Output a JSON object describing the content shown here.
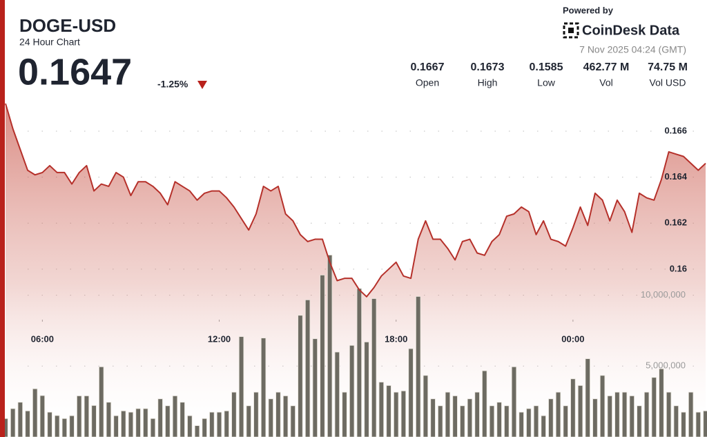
{
  "header": {
    "price": 0.1647,
    "change": "-1.25%",
    "stats": [
      {
        "value": "0.1667",
        "label": "Open"
      },
      {
        "value": "0.1673",
        "label": "High"
      },
      {
        "value": "0.1585",
        "label": "Low"
      },
      {
        "value": "462.77 M",
        "label": "Vol"
      },
      {
        "value": "74.75 M",
        "label": "Vol USD"
      }
    ],
    "powered_by": "Powered by",
    "brand": "CoinDesk Data",
    "timestamp": "7 Nov 2025 04:24 (GMT)"
  },
  "chart_data": {
    "type": "area",
    "title": "DOGE-USD",
    "subtitle": "24 Hour Chart",
    "x": [
      4.75,
      5,
      5.25,
      5.5,
      5.75,
      6,
      6.25,
      6.5,
      6.75,
      7,
      7.25,
      7.5,
      7.75,
      8,
      8.25,
      8.5,
      8.75,
      9,
      9.25,
      9.5,
      9.75,
      10,
      10.25,
      10.5,
      10.75,
      11,
      11.25,
      11.5,
      11.75,
      12,
      12.25,
      12.5,
      12.75,
      13,
      13.25,
      13.5,
      13.75,
      14,
      14.25,
      14.5,
      14.75,
      15,
      15.25,
      15.5,
      15.75,
      16,
      16.25,
      16.5,
      16.75,
      17,
      17.25,
      17.5,
      17.75,
      18,
      18.25,
      18.5,
      18.75,
      19,
      19.25,
      19.5,
      19.75,
      20,
      20.25,
      20.5,
      20.75,
      21,
      21.25,
      21.5,
      21.75,
      22,
      22.25,
      22.5,
      22.75,
      23,
      23.25,
      23.5,
      23.75,
      24,
      24.25,
      24.5,
      24.75,
      25,
      25.25,
      25.5,
      25.75,
      26,
      26.25,
      26.5,
      26.75,
      27,
      27.25,
      27.5,
      27.75,
      28,
      28.25,
      28.5
    ],
    "xlim": [
      4.75,
      28.5
    ],
    "xticks": [
      {
        "value": 6,
        "label": "06:00"
      },
      {
        "value": 12,
        "label": "12:00"
      },
      {
        "value": 18,
        "label": "18:00"
      },
      {
        "value": 24,
        "label": "00:00"
      }
    ],
    "ylim": [
      0.1527,
      0.1675
    ],
    "yticks": [
      0.16,
      0.162,
      0.164,
      0.166
    ],
    "y2lim": [
      0,
      24000000
    ],
    "y2ticks": [
      {
        "value": 5000000,
        "label": "5,000,000"
      },
      {
        "value": 10000000,
        "label": "10,000,000"
      }
    ],
    "grid": true,
    "series": [
      {
        "color": "#b5302a",
        "values": [
          0.1672,
          0.1661,
          0.1652,
          0.1643,
          0.1641,
          0.1642,
          0.1645,
          0.1642,
          0.1642,
          0.1637,
          0.1642,
          0.1645,
          0.1634,
          0.1637,
          0.1636,
          0.1642,
          0.164,
          0.1632,
          0.1638,
          0.1638,
          0.1636,
          0.1633,
          0.1628,
          0.1638,
          0.1636,
          0.1634,
          0.163,
          0.1633,
          0.1634,
          0.1634,
          0.1631,
          0.1627,
          0.1622,
          0.1617,
          0.1624,
          0.1636,
          0.1634,
          0.1636,
          0.1624,
          0.1621,
          0.1615,
          0.1612,
          0.1613,
          0.1613,
          0.1603,
          0.1595,
          0.1596,
          0.1596,
          0.1591,
          0.1588,
          0.1592,
          0.1597,
          0.16,
          0.1603,
          0.1597,
          0.1596,
          0.1613,
          0.1621,
          0.1613,
          0.1613,
          0.1609,
          0.1604,
          0.1612,
          0.1613,
          0.1607,
          0.1606,
          0.1612,
          0.1615,
          0.1623,
          0.1624,
          0.1627,
          0.1625,
          0.1615,
          0.1621,
          0.1613,
          0.1612,
          0.161,
          0.1618,
          0.1627,
          0.1619,
          0.1633,
          0.163,
          0.1621,
          0.163,
          0.1625,
          0.1616,
          0.1633,
          0.1631,
          0.163,
          0.1639,
          0.1651,
          0.165,
          0.1649,
          0.1646,
          0.1643,
          0.1646
        ]
      },
      {
        "type": "bar",
        "axis": "y2",
        "color": "#6d6b62",
        "values": [
          1300000,
          2000000,
          2450000,
          1840000,
          3400000,
          2920000,
          1750000,
          1510000,
          1300000,
          1500000,
          2900000,
          2900000,
          2220000,
          4950000,
          2450000,
          1500000,
          1840000,
          1750000,
          2000000,
          2000000,
          1300000,
          2690000,
          2200000,
          2900000,
          2450000,
          1500000,
          800000,
          1300000,
          1750000,
          1750000,
          1840000,
          3160000,
          7080000,
          2200000,
          3160000,
          6980000,
          2690000,
          3160000,
          2900000,
          2200000,
          8580000,
          9670000,
          6930000,
          11420000,
          12830000,
          5990000,
          3160000,
          6460000,
          10470000,
          6700000,
          9760000,
          3870000,
          3630000,
          3160000,
          3250000,
          6230000,
          9910000,
          4340000,
          2690000,
          2200000,
          3160000,
          2900000,
          2200000,
          2690000,
          3160000,
          4670000,
          2200000,
          2450000,
          2200000,
          4950000,
          1750000,
          2000000,
          2200000,
          1500000,
          2690000,
          3160000,
          2200000,
          4100000,
          3630000,
          5520000,
          2690000,
          4340000,
          2900000,
          3160000,
          3160000,
          2900000,
          2200000,
          3160000,
          4200000,
          4810000,
          3160000,
          2200000,
          1750000,
          3160000,
          1750000,
          1840000
        ]
      }
    ]
  }
}
